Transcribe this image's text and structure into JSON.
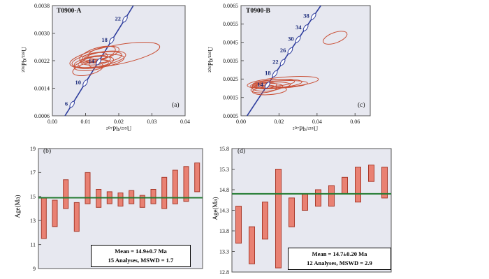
{
  "colors": {
    "panel_bg": "#e7e8f0",
    "axis": "#555555",
    "ellipse": "#c94f35",
    "concordia": "#2f3e9e",
    "age_label": "#1a2a7a",
    "mean_line": "#217a2f",
    "bar_fill": "#e98173",
    "bar_stroke": "#a93b2c",
    "text": "#111111"
  },
  "panels": {
    "a": {
      "title": "T0900-A",
      "corner": "(a)",
      "xlabel": "²⁰⁷Pb/²³⁵U",
      "ylabel": "²⁰⁶Pb/²³⁸U"
    },
    "c": {
      "title": "T0900-B",
      "corner": "(c)",
      "xlabel": "²⁰⁷Pb/²³⁵U",
      "ylabel": "²⁰⁶Pb/²³⁸U"
    },
    "b": {
      "corner": "(b)",
      "ylabel": "Age(Ma)",
      "box_line1": "Mean = 14.9±0.7 Ma",
      "box_line2": "15 Analyses, MSWD = 1.7"
    },
    "d": {
      "corner": "(d)",
      "ylabel": "Age(Ma)",
      "box_line1": "Mean = 14.7±0.20 Ma",
      "box_line2": "12 Analyses, MSWD = 2.9"
    }
  },
  "chart_data": [
    {
      "id": "a",
      "type": "scatter",
      "subtype": "concordia-ellipses",
      "title": "T0900-A",
      "xlabel": "207Pb/235U",
      "ylabel": "206Pb/238U",
      "xlim": [
        0.0,
        0.04
      ],
      "ylim": [
        0.0006,
        0.0038
      ],
      "xticks": [
        0.0,
        0.01,
        0.02,
        0.03,
        0.04
      ],
      "xtick_labels": [
        "0.00",
        "0.01",
        "0.02",
        "0.03",
        "0.04"
      ],
      "yticks": [
        0.0006,
        0.0014,
        0.0022,
        0.003,
        0.0038
      ],
      "ytick_labels": [
        "0.0006",
        "0.0014",
        "0.0022",
        "0.0030",
        "0.0038"
      ],
      "concordia_line": [
        [
          0.0038,
          0.0006
        ],
        [
          0.0244,
          0.0038
        ]
      ],
      "ages": [
        {
          "t": 6,
          "x": 0.00593,
          "y": 0.00093
        },
        {
          "t": 10,
          "x": 0.0099,
          "y": 0.00155
        },
        {
          "t": 14,
          "x": 0.01389,
          "y": 0.00217
        },
        {
          "t": 18,
          "x": 0.01788,
          "y": 0.00279
        },
        {
          "t": 22,
          "x": 0.0219,
          "y": 0.00341
        }
      ],
      "ellipses": [
        {
          "cx": 0.0125,
          "cy": 0.00215,
          "rx": 0.006,
          "ry": 0.00016,
          "rot": -8
        },
        {
          "cx": 0.014,
          "cy": 0.00224,
          "rx": 0.0082,
          "ry": 0.0002,
          "rot": -10
        },
        {
          "cx": 0.0152,
          "cy": 0.0023,
          "rx": 0.0058,
          "ry": 0.00015,
          "rot": -7
        },
        {
          "cx": 0.0188,
          "cy": 0.00236,
          "rx": 0.0138,
          "ry": 0.00028,
          "rot": -11
        },
        {
          "cx": 0.013,
          "cy": 0.00221,
          "rx": 0.0045,
          "ry": 0.00013,
          "rot": -6
        },
        {
          "cx": 0.0117,
          "cy": 0.00207,
          "rx": 0.0052,
          "ry": 0.00015,
          "rot": -8
        },
        {
          "cx": 0.0147,
          "cy": 0.00218,
          "rx": 0.007,
          "ry": 0.00017,
          "rot": -9
        },
        {
          "cx": 0.0107,
          "cy": 0.00196,
          "rx": 0.0047,
          "ry": 0.00017,
          "rot": -13
        },
        {
          "cx": 0.0136,
          "cy": 0.00238,
          "rx": 0.0056,
          "ry": 0.00019,
          "rot": -17
        },
        {
          "cx": 0.0154,
          "cy": 0.00243,
          "rx": 0.0048,
          "ry": 0.00016,
          "rot": -13
        },
        {
          "cx": 0.0128,
          "cy": 0.00231,
          "rx": 0.0038,
          "ry": 0.00012,
          "rot": -9
        },
        {
          "cx": 0.0143,
          "cy": 0.00211,
          "rx": 0.0033,
          "ry": 0.00011,
          "rot": -6
        }
      ]
    },
    {
      "id": "c",
      "type": "scatter",
      "subtype": "concordia-ellipses",
      "title": "T0900-B",
      "xlabel": "207Pb/235U",
      "ylabel": "206Pb/238U",
      "xlim": [
        0.0,
        0.068
      ],
      "ylim": [
        0.0005,
        0.0065
      ],
      "xticks": [
        0.0,
        0.02,
        0.04,
        0.06
      ],
      "xtick_labels": [
        "0.00",
        "0.02",
        "0.04",
        "0.06"
      ],
      "yticks": [
        0.0005,
        0.0015,
        0.0025,
        0.0035,
        0.0045,
        0.0055,
        0.0065
      ],
      "ytick_labels": [
        "0.0005",
        "0.0015",
        "0.0025",
        "0.0035",
        "0.0045",
        "0.0055",
        "0.0065"
      ],
      "concordia_line": [
        [
          0.0032,
          0.0005
        ],
        [
          0.042,
          0.0065
        ]
      ],
      "ages": [
        {
          "t": 14,
          "x": 0.01389,
          "y": 0.00217
        },
        {
          "t": 18,
          "x": 0.01788,
          "y": 0.00279
        },
        {
          "t": 22,
          "x": 0.0219,
          "y": 0.00341
        },
        {
          "t": 26,
          "x": 0.02588,
          "y": 0.00404
        },
        {
          "t": 30,
          "x": 0.02999,
          "y": 0.00466
        },
        {
          "t": 34,
          "x": 0.03404,
          "y": 0.00529
        },
        {
          "t": 38,
          "x": 0.03813,
          "y": 0.00591
        }
      ],
      "ellipses": [
        {
          "cx": 0.019,
          "cy": 0.00225,
          "rx": 0.013,
          "ry": 0.00022,
          "rot": -4
        },
        {
          "cx": 0.022,
          "cy": 0.00232,
          "rx": 0.0188,
          "ry": 0.00028,
          "rot": -5
        },
        {
          "cx": 0.016,
          "cy": 0.00215,
          "rx": 0.01,
          "ry": 0.00018,
          "rot": -3
        },
        {
          "cx": 0.014,
          "cy": 0.00205,
          "rx": 0.008,
          "ry": 0.0002,
          "rot": -4
        },
        {
          "cx": 0.02,
          "cy": 0.0022,
          "rx": 0.015,
          "ry": 0.0002,
          "rot": -3
        },
        {
          "cx": 0.012,
          "cy": 0.00196,
          "rx": 0.0068,
          "ry": 0.0002,
          "rot": -5
        },
        {
          "cx": 0.0172,
          "cy": 0.00229,
          "rx": 0.011,
          "ry": 0.00018,
          "rot": -4
        },
        {
          "cx": 0.015,
          "cy": 0.00187,
          "rx": 0.009,
          "ry": 0.00022,
          "rot": -4
        },
        {
          "cx": 0.013,
          "cy": 0.00214,
          "rx": 0.0058,
          "ry": 0.00015,
          "rot": -5
        },
        {
          "cx": 0.0495,
          "cy": 0.00475,
          "rx": 0.0066,
          "ry": 0.00028,
          "rot": -20
        }
      ]
    },
    {
      "id": "b",
      "type": "bar",
      "subtype": "weighted-mean-age",
      "ylabel": "Age(Ma)",
      "ylim": [
        9,
        19
      ],
      "yticks": [
        9,
        11,
        13,
        15,
        17,
        19
      ],
      "ytick_labels": [
        "9",
        "11",
        "13",
        "15",
        "17",
        "19"
      ],
      "mean": 14.9,
      "mean_err": 0.7,
      "n_analyses": 15,
      "mswd": 1.7,
      "mean_line": 14.9,
      "bars": [
        [
          11.5,
          14.9
        ],
        [
          12.5,
          14.7
        ],
        [
          14.0,
          16.4
        ],
        [
          12.1,
          14.5
        ],
        [
          14.4,
          17.0
        ],
        [
          14.1,
          15.6
        ],
        [
          14.4,
          15.4
        ],
        [
          14.2,
          15.3
        ],
        [
          14.4,
          15.5
        ],
        [
          14.1,
          15.1
        ],
        [
          14.4,
          15.6
        ],
        [
          14.0,
          16.6
        ],
        [
          14.4,
          17.2
        ],
        [
          14.6,
          17.5
        ],
        [
          15.4,
          17.8
        ]
      ]
    },
    {
      "id": "d",
      "type": "bar",
      "subtype": "weighted-mean-age",
      "ylabel": "Age(Ma)",
      "ylim": [
        12.8,
        15.8
      ],
      "yticks": [
        12.8,
        13.3,
        13.8,
        14.3,
        14.8,
        15.3,
        15.8
      ],
      "ytick_labels": [
        "12.8",
        "13.3",
        "13.8",
        "14.3",
        "14.8",
        "15.3",
        "15.8"
      ],
      "mean": 14.7,
      "mean_err": 0.2,
      "n_analyses": 12,
      "mswd": 2.9,
      "mean_line": 14.7,
      "bars": [
        [
          13.5,
          14.4
        ],
        [
          13.0,
          13.9
        ],
        [
          13.6,
          14.5
        ],
        [
          12.9,
          15.3
        ],
        [
          13.9,
          14.6
        ],
        [
          14.3,
          14.7
        ],
        [
          14.4,
          14.8
        ],
        [
          14.4,
          14.9
        ],
        [
          14.7,
          15.1
        ],
        [
          14.5,
          15.35
        ],
        [
          15.0,
          15.4
        ],
        [
          14.6,
          15.35
        ]
      ]
    }
  ]
}
